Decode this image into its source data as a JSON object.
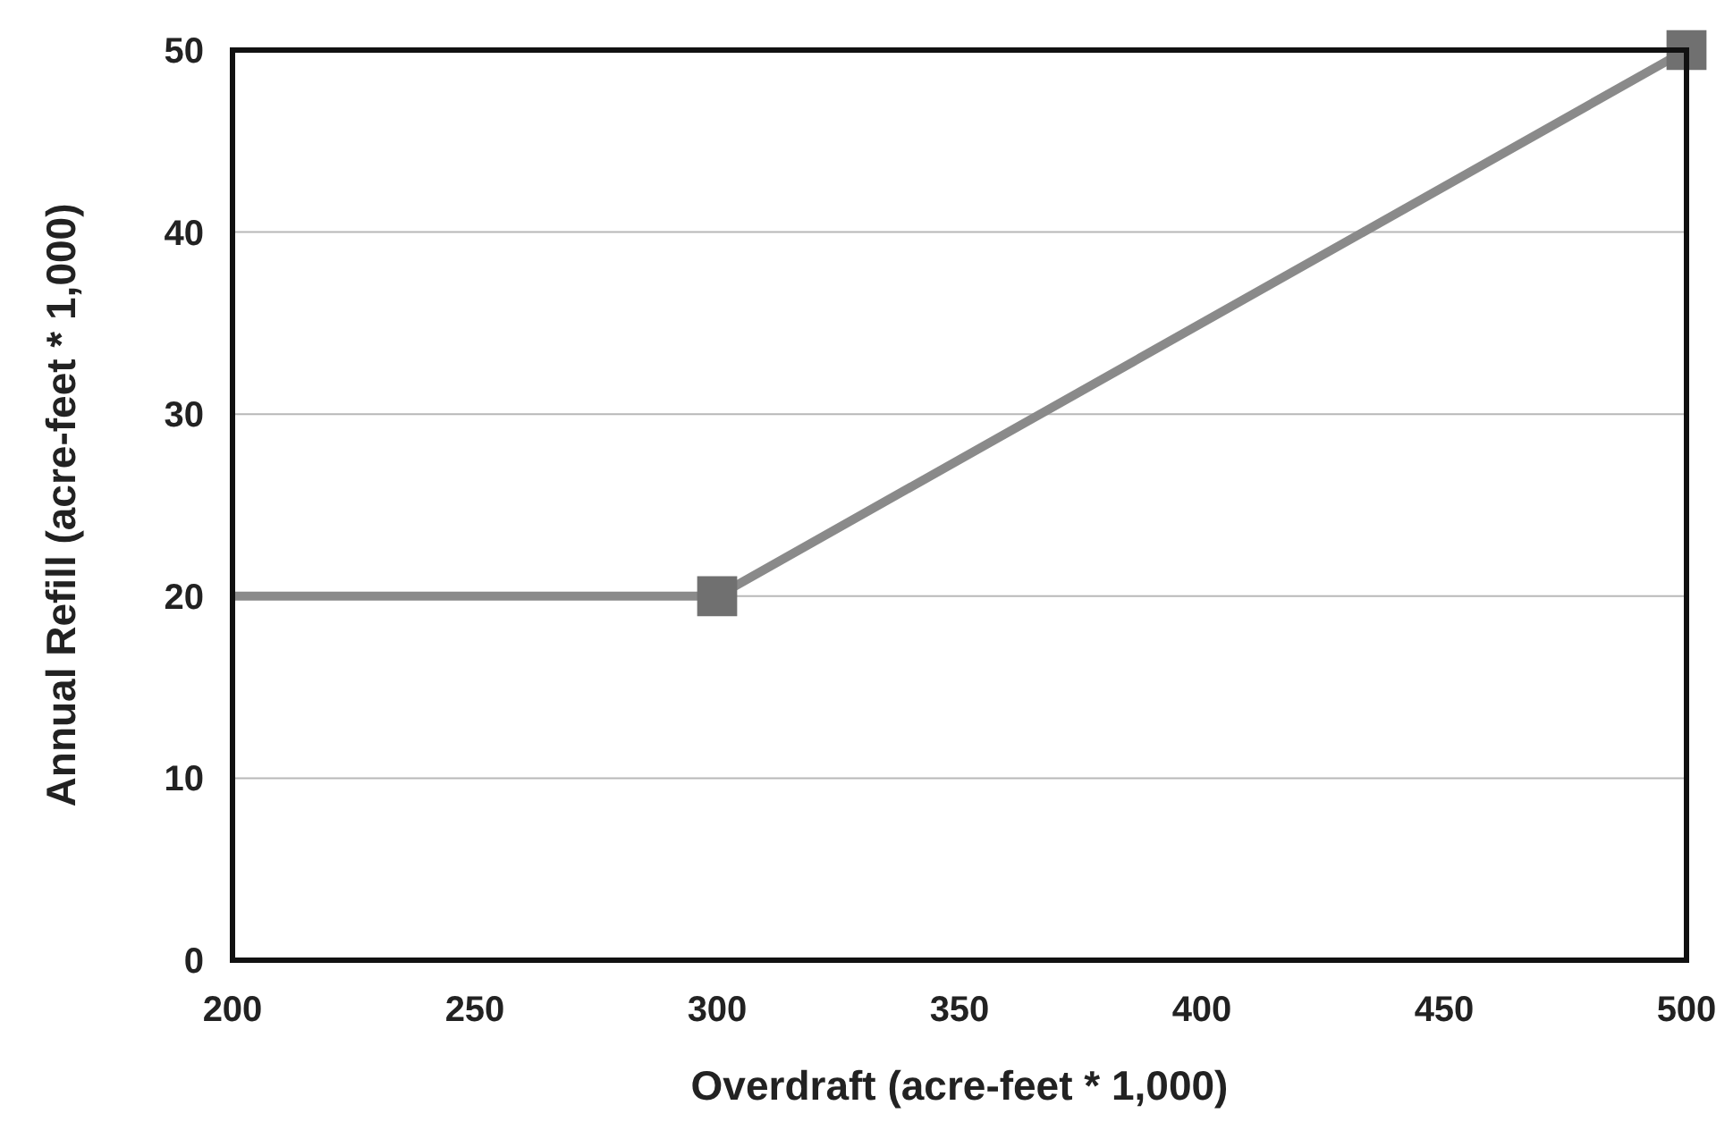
{
  "chart_data": {
    "type": "line",
    "xlabel": "Overdraft (acre-feet * 1,000)",
    "ylabel": "Annual Refill (acre-feet * 1,000)",
    "xlim": [
      200,
      500
    ],
    "xticks": [
      200,
      250,
      300,
      350,
      400,
      450,
      500
    ],
    "ylim": [
      0,
      50
    ],
    "yticks": [
      0,
      10,
      20,
      30,
      40,
      50
    ],
    "grid": "y",
    "series": [
      {
        "type": "line",
        "x": [
          200,
          300,
          500
        ],
        "values": [
          20,
          20,
          50
        ],
        "color": "#8a8a8a",
        "marker": "none"
      },
      {
        "type": "scatter",
        "x": [
          300,
          500
        ],
        "values": [
          20,
          50
        ],
        "color": "#707070",
        "marker": "square"
      }
    ]
  }
}
